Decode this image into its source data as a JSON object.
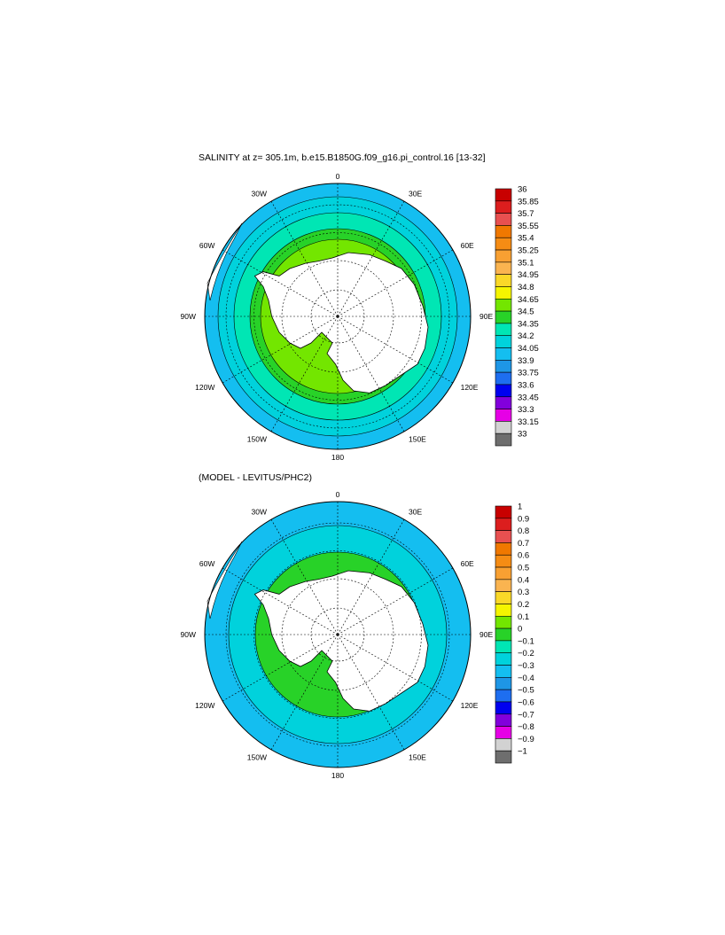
{
  "panels": [
    {
      "title": "SALINITY at z= 305.1m, b.e15.B1850G.f09_g16.pi_control.16 [13-32]",
      "lon_labels": [
        "0",
        "30E",
        "60E",
        "90E",
        "120E",
        "150E",
        "180",
        "150W",
        "120W",
        "90W",
        "60W",
        "30W"
      ],
      "colorbar": {
        "labels": [
          "36",
          "35.85",
          "35.7",
          "35.55",
          "35.4",
          "35.25",
          "35.1",
          "34.95",
          "34.8",
          "34.65",
          "34.5",
          "34.35",
          "34.2",
          "34.05",
          "33.9",
          "33.75",
          "33.6",
          "33.45",
          "33.3",
          "33.15",
          "33"
        ],
        "colors": [
          "#c80000",
          "#dc1e1e",
          "#e85050",
          "#f07800",
          "#f58c14",
          "#f8a032",
          "#fab450",
          "#fad828",
          "#f5f500",
          "#73e600",
          "#28d228",
          "#00e6b4",
          "#00d2dc",
          "#14bef0",
          "#1e96e6",
          "#1e6ef0",
          "#0000f0",
          "#8200dc",
          "#e600e6",
          "#d2d2d2",
          "#6e6e6e"
        ]
      },
      "ocean_color": "#14bef0",
      "rings": [
        {
          "color": "#00d2dc",
          "frac": 0.9
        },
        {
          "color": "#00e6b4",
          "frac": 0.78
        },
        {
          "color": "#28d228",
          "frac": 0.66
        },
        {
          "color": "#73e600",
          "frac": 0.58
        }
      ]
    },
    {
      "title": "(MODEL - LEVITUS/PHC2)",
      "lon_labels": [
        "0",
        "30E",
        "60E",
        "90E",
        "120E",
        "150E",
        "180",
        "150W",
        "120W",
        "90W",
        "60W",
        "30W"
      ],
      "colorbar": {
        "labels": [
          "1",
          "0.9",
          "0.8",
          "0.7",
          "0.6",
          "0.5",
          "0.4",
          "0.3",
          "0.2",
          "0.1",
          "0",
          "−0.1",
          "−0.2",
          "−0.3",
          "−0.4",
          "−0.5",
          "−0.6",
          "−0.7",
          "−0.8",
          "−0.9",
          "−1"
        ],
        "colors": [
          "#c80000",
          "#dc1e1e",
          "#e85050",
          "#f07800",
          "#f58c14",
          "#f8a032",
          "#fab450",
          "#fad828",
          "#f5f500",
          "#73e600",
          "#28d228",
          "#00e6b4",
          "#00d2dc",
          "#14bef0",
          "#1e96e6",
          "#1e6ef0",
          "#0000f0",
          "#8200dc",
          "#e600e6",
          "#d2d2d2",
          "#6e6e6e"
        ]
      },
      "ocean_color": "#14bef0",
      "rings": [
        {
          "color": "#00d2dc",
          "frac": 0.82
        },
        {
          "color": "#28d228",
          "frac": 0.62
        }
      ]
    }
  ]
}
